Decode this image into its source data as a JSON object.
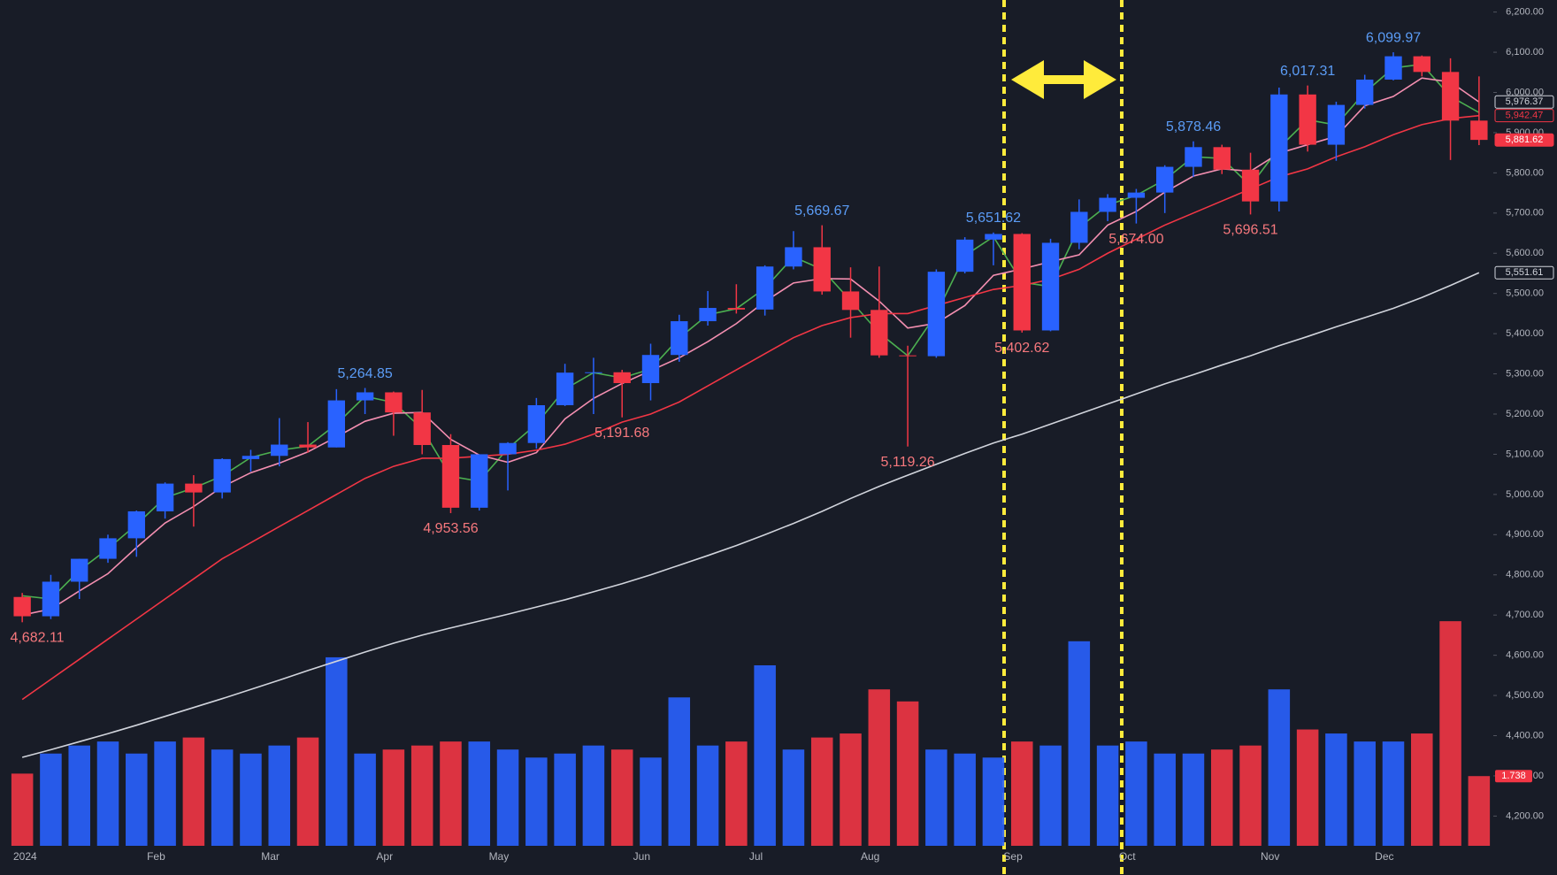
{
  "chart_data": {
    "type": "candlestick",
    "categories": [
      "2024",
      null,
      null,
      null,
      null,
      "Feb",
      null,
      null,
      null,
      "Mar",
      null,
      null,
      null,
      "Apr",
      null,
      null,
      null,
      "May",
      null,
      null,
      null,
      null,
      "Jun",
      null,
      null,
      null,
      "Jul",
      null,
      null,
      null,
      "Aug",
      null,
      null,
      null,
      null,
      "Sep",
      null,
      null,
      null,
      "Oct",
      null,
      null,
      null,
      null,
      "Nov",
      null,
      null,
      null,
      "Dec",
      null,
      null,
      null
    ],
    "open": [
      4745,
      4697,
      4783,
      4840,
      4891,
      4958,
      5027,
      5005,
      5088,
      5096,
      5124,
      5117,
      5234,
      5254,
      5204,
      5123,
      4967,
      5100,
      5128,
      5222,
      5303,
      5304,
      5277,
      5347,
      5431,
      5464,
      5460,
      5567,
      5615,
      5505,
      5459,
      5346,
      5344,
      5554,
      5634,
      5648,
      5408,
      5626,
      5703,
      5738,
      5751,
      5815,
      5864,
      5808,
      5729,
      5995,
      5870,
      5969,
      6032,
      6090,
      6051,
      5930
    ],
    "high": [
      4755,
      4800,
      4840,
      4900,
      4960,
      5030,
      5048,
      5090,
      5111,
      5190,
      5180,
      5262,
      5264.85,
      5256,
      5260,
      5150,
      5100,
      5130,
      5240,
      5325,
      5340,
      5310,
      5375,
      5447,
      5506,
      5523,
      5570,
      5655,
      5669.67,
      5565,
      5567,
      5370,
      5560,
      5640,
      5651.62,
      5650,
      5636,
      5734,
      5747,
      5760,
      5819,
      5878.46,
      5870,
      5850,
      6012,
      6017.31,
      5977,
      6044,
      6099.97,
      6092,
      6085,
      6040
    ],
    "low": [
      4682.11,
      4690,
      4740,
      4830,
      4845,
      4940,
      4920,
      4990,
      5057,
      5070,
      5104,
      5117,
      5200,
      5146,
      5100,
      4953.56,
      4960,
      5010,
      5114,
      5220,
      5200,
      5191.68,
      5234,
      5330,
      5420,
      5450,
      5445,
      5560,
      5497,
      5390,
      5340,
      5119.26,
      5340,
      5550,
      5570,
      5402.62,
      5406,
      5610,
      5680,
      5674.0,
      5700,
      5790,
      5797,
      5696.51,
      5704,
      5853,
      5830,
      5960,
      6030,
      6040,
      5832,
      5869
    ],
    "close": [
      4697,
      4783,
      4840,
      4891,
      4958,
      5027,
      5005,
      5088,
      5096,
      5124,
      5117,
      5234,
      5254,
      5204,
      5123,
      4967,
      5100,
      5128,
      5222,
      5303,
      5304,
      5277,
      5347,
      5431,
      5464,
      5460,
      5567,
      5615,
      5505,
      5459,
      5346,
      5344,
      5554,
      5634,
      5648,
      5408,
      5626,
      5703,
      5738,
      5751,
      5815,
      5864,
      5808,
      5729,
      5995,
      5870,
      5969,
      6032,
      6090,
      6051,
      5930,
      5882
    ],
    "up_color": "#2962ff",
    "down_color": "#f23645",
    "high_label_color": "#5b9cf6",
    "low_label_color": "#f7787d",
    "volume": [
      1.8,
      2.3,
      2.5,
      2.6,
      2.3,
      2.6,
      2.7,
      2.4,
      2.3,
      2.5,
      2.7,
      4.7,
      2.3,
      2.4,
      2.5,
      2.6,
      2.6,
      2.4,
      2.2,
      2.3,
      2.5,
      2.4,
      2.2,
      3.7,
      2.5,
      2.6,
      4.5,
      2.4,
      2.7,
      2.8,
      3.9,
      3.6,
      2.4,
      2.3,
      2.2,
      2.6,
      2.5,
      5.1,
      2.5,
      2.6,
      2.3,
      2.3,
      2.4,
      2.5,
      3.9,
      2.9,
      2.8,
      2.6,
      2.6,
      2.8,
      5.6,
      1.738
    ],
    "volume_ylim": [
      0,
      6
    ],
    "series": [
      {
        "name": "MA10",
        "color": "#4caf50",
        "values": [
          4748,
          4740,
          4811,
          4865,
          4925,
          4992,
          5016,
          5046,
          5092,
          5110,
          5120,
          5175,
          5244,
          5229,
          5163,
          5045,
          5033,
          5114,
          5175,
          5262,
          5303,
          5290,
          5312,
          5389,
          5447,
          5462,
          5513,
          5591,
          5560,
          5482,
          5402,
          5345,
          5449,
          5594,
          5641,
          5528,
          5517,
          5664,
          5720,
          5744,
          5783,
          5840,
          5836,
          5768,
          5862,
          5932,
          5919,
          6000,
          6061,
          6070,
          5990,
          5950
        ]
      },
      {
        "name": "MA20",
        "color": "#f48fb1",
        "values": [
          4700,
          4715,
          4760,
          4803,
          4868,
          4929,
          4970,
          5019,
          5054,
          5078,
          5106,
          5143,
          5182,
          5202,
          5204,
          5137,
          5098,
          5080,
          5104,
          5188,
          5239,
          5276,
          5308,
          5340,
          5380,
          5425,
          5480,
          5526,
          5537,
          5536,
          5481,
          5414,
          5426,
          5470,
          5545,
          5561,
          5579,
          5596,
          5670,
          5704,
          5752,
          5792,
          5810,
          5804,
          5849,
          5870,
          5891,
          5967,
          5990,
          6036,
          6026,
          5976.37
        ]
      },
      {
        "name": "MA50",
        "color": "#f23645",
        "values": [
          4490,
          4540,
          4590,
          4640,
          4690,
          4740,
          4790,
          4840,
          4880,
          4920,
          4960,
          5000,
          5040,
          5070,
          5090,
          5090,
          5095,
          5100,
          5110,
          5125,
          5150,
          5180,
          5200,
          5230,
          5270,
          5310,
          5350,
          5390,
          5420,
          5440,
          5450,
          5450,
          5470,
          5490,
          5510,
          5520,
          5535,
          5560,
          5600,
          5635,
          5670,
          5700,
          5730,
          5760,
          5790,
          5810,
          5840,
          5865,
          5895,
          5920,
          5935,
          5942.47
        ]
      },
      {
        "name": "MA200",
        "color": "#d1d4dc",
        "values": [
          4346,
          4365,
          4385,
          4405,
          4426,
          4448,
          4470,
          4492,
          4515,
          4538,
          4562,
          4585,
          4608,
          4630,
          4650,
          4668,
          4685,
          4702,
          4720,
          4738,
          4758,
          4778,
          4800,
          4824,
          4848,
          4873,
          4900,
          4928,
          4958,
          4990,
          5020,
          5048,
          5075,
          5102,
          5128,
          5150,
          5175,
          5200,
          5225,
          5250,
          5275,
          5298,
          5322,
          5345,
          5370,
          5393,
          5417,
          5440,
          5463,
          5490,
          5520,
          5551.61
        ]
      }
    ],
    "annotations": [
      {
        "value": 4682.11,
        "label": "4,682.11"
      },
      {
        "value": 5264.85,
        "label": "5,264.85"
      },
      {
        "value": 4953.56,
        "label": "4,953.56"
      },
      {
        "value": 5191.68,
        "label": "5,191.68"
      },
      {
        "value": 5669.67,
        "label": "5,669.67"
      },
      {
        "value": 5119.26,
        "label": "5,119.26"
      },
      {
        "value": 5651.62,
        "label": "5,651.62"
      },
      {
        "value": 5402.62,
        "label": "5,402.62"
      },
      {
        "value": 5674.0,
        "label": "5,674.00"
      },
      {
        "value": 5878.46,
        "label": "5,878.46"
      },
      {
        "value": 5696.51,
        "label": "5,696.51"
      },
      {
        "value": 6017.31,
        "label": "6,017.31"
      },
      {
        "value": 6099.97,
        "label": "6,099.97"
      }
    ],
    "price_tags": [
      {
        "value": 5976.37,
        "label": "5,976.37",
        "color": "#d1d4dc",
        "filled": false
      },
      {
        "value": 5942.47,
        "label": "5,942.47",
        "color": "#f23645",
        "filled": false
      },
      {
        "value": 5881.62,
        "label": "5,881.62",
        "color": "#f23645",
        "filled": true
      },
      {
        "value": 5551.61,
        "label": "5,551.61",
        "color": "#d1d4dc",
        "filled": false
      }
    ],
    "volume_tag": {
      "value": 1.738,
      "label": "1.738",
      "color": "#f23645"
    },
    "ylim": [
      4126,
      6230
    ],
    "yticks": [
      {
        "value": 4200,
        "label": "4,200.00"
      },
      {
        "value": 4300,
        "label": "4,300.00"
      },
      {
        "value": 4400,
        "label": "4,400.00"
      },
      {
        "value": 4500,
        "label": "4,500.00"
      },
      {
        "value": 4600,
        "label": "4,600.00"
      },
      {
        "value": 4700,
        "label": "4,700.00"
      },
      {
        "value": 4800,
        "label": "4,800.00"
      },
      {
        "value": 4900,
        "label": "4,900.00"
      },
      {
        "value": 5000,
        "label": "5,000.00"
      },
      {
        "value": 5100,
        "label": "5,100.00"
      },
      {
        "value": 5200,
        "label": "5,200.00"
      },
      {
        "value": 5300,
        "label": "5,300.00"
      },
      {
        "value": 5400,
        "label": "5,400.00"
      },
      {
        "value": 5500,
        "label": "5,500.00"
      },
      {
        "value": 5600,
        "label": "5,600.00"
      },
      {
        "value": 5700,
        "label": "5,700.00"
      },
      {
        "value": 5800,
        "label": "5,800.00"
      },
      {
        "value": 5900,
        "label": "5,900.00"
      },
      {
        "value": 6000,
        "label": "6,000.00"
      },
      {
        "value": 6100,
        "label": "6,100.00"
      },
      {
        "value": 6200,
        "label": "6,200.00"
      }
    ],
    "grid": false
  }
}
